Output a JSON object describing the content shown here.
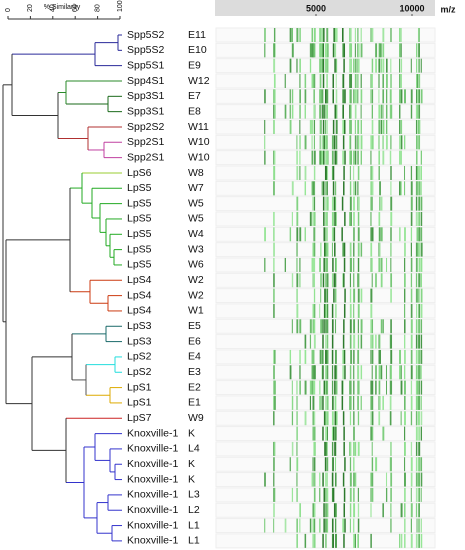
{
  "scale": {
    "title": "% Similarity",
    "ticks": [
      0,
      20,
      40,
      60,
      80,
      100
    ]
  },
  "spectra": {
    "axis_label": "m/z",
    "ticks": [
      5000,
      10000
    ]
  },
  "rows": [
    {
      "strain": "Spp5S2",
      "code": "E11"
    },
    {
      "strain": "Spp5S2",
      "code": "E10"
    },
    {
      "strain": "Spp5S1",
      "code": "E9"
    },
    {
      "strain": "Spp4S1",
      "code": "W12"
    },
    {
      "strain": "Spp3S1",
      "code": "E7"
    },
    {
      "strain": "Spp3S1",
      "code": "E8"
    },
    {
      "strain": "Spp2S2",
      "code": "W11"
    },
    {
      "strain": "Spp2S1",
      "code": "W10"
    },
    {
      "strain": "Spp2S1",
      "code": "W10"
    },
    {
      "strain": "LpS6",
      "code": "W8"
    },
    {
      "strain": "LpS5",
      "code": "W7"
    },
    {
      "strain": "LpS5",
      "code": "W5"
    },
    {
      "strain": "LpS5",
      "code": "W5"
    },
    {
      "strain": "LpS5",
      "code": "W4"
    },
    {
      "strain": "LpS5",
      "code": "W3"
    },
    {
      "strain": "LpS5",
      "code": "W6"
    },
    {
      "strain": "LpS4",
      "code": "W2"
    },
    {
      "strain": "LpS4",
      "code": "W2"
    },
    {
      "strain": "LpS4",
      "code": "W1"
    },
    {
      "strain": "LpS3",
      "code": "E5"
    },
    {
      "strain": "LpS3",
      "code": "E6"
    },
    {
      "strain": "LpS2",
      "code": "E4"
    },
    {
      "strain": "LpS2",
      "code": "E3"
    },
    {
      "strain": "LpS1",
      "code": "E2"
    },
    {
      "strain": "LpS1",
      "code": "E1"
    },
    {
      "strain": "LpS7",
      "code": "W9"
    },
    {
      "strain": "Knoxville-1",
      "code": "K"
    },
    {
      "strain": "Knoxville-1",
      "code": "L4"
    },
    {
      "strain": "Knoxville-1",
      "code": "K"
    },
    {
      "strain": "Knoxville-1",
      "code": "K"
    },
    {
      "strain": "Knoxville-1",
      "code": "L3"
    },
    {
      "strain": "Knoxville-1",
      "code": "L2"
    },
    {
      "strain": "Knoxville-1",
      "code": "L1"
    },
    {
      "strain": "Knoxville-1",
      "code": "L1"
    }
  ]
}
